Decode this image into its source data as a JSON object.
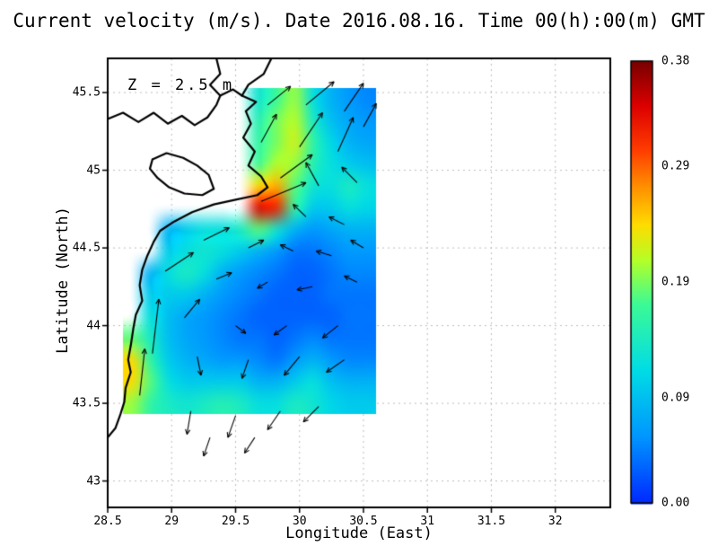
{
  "chart_data": {
    "type": "heatmap",
    "title": "Current velocity (m/s). Date 2016.08.16. Time 00(h):00(m) GMT",
    "annotation": "Z = 2.5 m",
    "xlabel": "Longitude (East)",
    "ylabel": "Latitude (North)",
    "units": "m/s",
    "xlim": [
      28.5,
      32.43
    ],
    "ylim": [
      42.83,
      45.72
    ],
    "xticks": [
      28.5,
      29,
      29.5,
      30,
      30.5,
      31,
      31.5,
      32
    ],
    "xtick_labels": [
      "28.5",
      "29",
      "29.5",
      "30",
      "30.5",
      "31",
      "31.5",
      "32"
    ],
    "yticks": [
      43,
      43.5,
      44,
      44.5,
      45,
      45.5
    ],
    "ytick_labels": [
      "43",
      "43.5",
      "44",
      "44.5",
      "45",
      "45.5"
    ],
    "grid": "dotted",
    "colorbar": {
      "min": 0,
      "max": 0.38,
      "tick_labels": [
        "0.38",
        "0.29",
        "0.19",
        "0.09",
        "0.00"
      ],
      "tick_values": [
        0.38,
        0.29,
        0.19,
        0.09,
        0.0
      ],
      "stops": [
        [
          0.0,
          "#0028ff"
        ],
        [
          0.15,
          "#0096ff"
        ],
        [
          0.3,
          "#00dce6"
        ],
        [
          0.45,
          "#3cfa96"
        ],
        [
          0.55,
          "#b4ff28"
        ],
        [
          0.63,
          "#ffdc00"
        ],
        [
          0.72,
          "#ff8c00"
        ],
        [
          0.8,
          "#ff3c00"
        ],
        [
          0.9,
          "#dc0000"
        ],
        [
          1.0,
          "#780000"
        ]
      ]
    },
    "field": {
      "lon_min": 28.62,
      "lon_max": 30.6,
      "lat_min": 43.43,
      "lat_max": 45.53,
      "values": [
        [
          null,
          null,
          null,
          null,
          null,
          null,
          null,
          0.13,
          0.17,
          0.2,
          0.12,
          0.08,
          0.06,
          0.05
        ],
        [
          null,
          null,
          null,
          null,
          null,
          null,
          null,
          0.15,
          0.19,
          0.21,
          0.14,
          0.09,
          0.07,
          0.06
        ],
        [
          null,
          null,
          null,
          null,
          null,
          null,
          null,
          0.16,
          0.19,
          0.22,
          0.16,
          0.11,
          0.08,
          0.07
        ],
        [
          null,
          null,
          null,
          null,
          null,
          null,
          null,
          0.17,
          0.21,
          0.2,
          0.15,
          0.12,
          0.1,
          0.09
        ],
        [
          null,
          null,
          null,
          null,
          null,
          null,
          null,
          0.24,
          0.26,
          0.18,
          0.13,
          0.12,
          0.14,
          0.12
        ],
        [
          null,
          null,
          null,
          null,
          null,
          null,
          null,
          0.34,
          0.32,
          0.16,
          0.1,
          0.1,
          0.12,
          0.11
        ],
        [
          null,
          null,
          0.08,
          0.1,
          0.12,
          0.12,
          0.14,
          0.18,
          0.13,
          0.08,
          0.06,
          0.07,
          0.08,
          0.08
        ],
        [
          null,
          null,
          0.1,
          0.12,
          0.13,
          0.12,
          0.1,
          0.08,
          0.06,
          0.04,
          0.04,
          0.05,
          0.06,
          0.06
        ],
        [
          null,
          0.08,
          0.12,
          0.14,
          0.12,
          0.08,
          0.06,
          0.05,
          0.04,
          0.03,
          0.03,
          0.04,
          0.05,
          0.05
        ],
        [
          null,
          0.1,
          0.1,
          0.1,
          0.08,
          0.06,
          0.05,
          0.04,
          0.03,
          0.03,
          0.03,
          0.04,
          0.04,
          0.04
        ],
        [
          null,
          0.12,
          0.09,
          0.07,
          0.06,
          0.05,
          0.04,
          0.03,
          0.03,
          0.03,
          0.03,
          0.03,
          0.04,
          0.04
        ],
        [
          0.18,
          0.14,
          0.09,
          0.07,
          0.06,
          0.05,
          0.04,
          0.04,
          0.03,
          0.04,
          0.05,
          0.04,
          0.04,
          0.04
        ],
        [
          0.24,
          0.16,
          0.1,
          0.08,
          0.07,
          0.06,
          0.06,
          0.05,
          0.04,
          0.06,
          0.08,
          0.06,
          0.05,
          0.05
        ],
        [
          0.24,
          0.18,
          0.12,
          0.1,
          0.1,
          0.1,
          0.1,
          0.08,
          0.08,
          0.1,
          0.12,
          0.09,
          0.08,
          0.08
        ],
        [
          0.2,
          0.16,
          0.14,
          0.13,
          0.14,
          0.15,
          0.14,
          0.12,
          0.12,
          0.14,
          0.13,
          0.11,
          0.1,
          0.1
        ]
      ]
    },
    "coastline": [
      [
        [
          29.78,
          45.72
        ],
        [
          29.72,
          45.62
        ],
        [
          29.6,
          45.55
        ],
        [
          29.55,
          45.48
        ],
        [
          29.66,
          45.44
        ],
        [
          29.58,
          45.38
        ],
        [
          29.62,
          45.3
        ],
        [
          29.56,
          45.21
        ],
        [
          29.65,
          45.12
        ],
        [
          29.6,
          45.03
        ],
        [
          29.7,
          44.96
        ],
        [
          29.75,
          44.89
        ],
        [
          29.67,
          44.84
        ],
        [
          29.5,
          44.81
        ],
        [
          29.33,
          44.78
        ],
        [
          29.16,
          44.73
        ],
        [
          29.02,
          44.67
        ],
        [
          28.91,
          44.61
        ],
        [
          28.86,
          44.54
        ],
        [
          28.81,
          44.45
        ],
        [
          28.77,
          44.36
        ],
        [
          28.75,
          44.26
        ],
        [
          28.77,
          44.16
        ],
        [
          28.72,
          44.07
        ],
        [
          28.7,
          43.98
        ],
        [
          28.68,
          43.87
        ],
        [
          28.66,
          43.78
        ],
        [
          28.68,
          43.7
        ],
        [
          28.64,
          43.6
        ],
        [
          28.63,
          43.51
        ],
        [
          28.6,
          43.43
        ],
        [
          28.56,
          43.34
        ],
        [
          28.5,
          43.28
        ]
      ],
      [
        [
          29.35,
          45.72
        ],
        [
          29.38,
          45.62
        ],
        [
          29.3,
          45.55
        ],
        [
          29.38,
          45.48
        ],
        [
          29.48,
          45.52
        ],
        [
          29.55,
          45.48
        ]
      ],
      [
        [
          28.5,
          45.33
        ],
        [
          28.62,
          45.37
        ],
        [
          28.74,
          45.31
        ],
        [
          28.86,
          45.37
        ],
        [
          28.97,
          45.3
        ],
        [
          29.08,
          45.35
        ],
        [
          29.18,
          45.29
        ],
        [
          29.28,
          45.34
        ],
        [
          29.35,
          45.42
        ],
        [
          29.38,
          45.48
        ]
      ],
      [
        [
          28.85,
          45.07
        ],
        [
          28.96,
          45.11
        ],
        [
          29.09,
          45.08
        ],
        [
          29.2,
          45.03
        ],
        [
          29.29,
          44.97
        ],
        [
          29.33,
          44.88
        ],
        [
          29.24,
          44.84
        ],
        [
          29.1,
          44.85
        ],
        [
          28.98,
          44.89
        ],
        [
          28.89,
          44.95
        ],
        [
          28.83,
          45.01
        ],
        [
          28.85,
          45.07
        ]
      ]
    ],
    "vectors": [
      [
        29.75,
        45.42,
        0.18,
        0.12
      ],
      [
        30.05,
        45.42,
        0.22,
        0.15
      ],
      [
        30.35,
        45.38,
        0.15,
        0.18
      ],
      [
        29.7,
        45.18,
        0.12,
        0.18
      ],
      [
        30.0,
        45.15,
        0.18,
        0.22
      ],
      [
        30.3,
        45.12,
        0.12,
        0.22
      ],
      [
        30.5,
        45.28,
        0.1,
        0.15
      ],
      [
        29.85,
        44.95,
        0.25,
        0.15
      ],
      [
        30.15,
        44.9,
        -0.1,
        0.15
      ],
      [
        30.45,
        44.92,
        -0.12,
        0.1
      ],
      [
        29.7,
        44.8,
        0.35,
        0.12
      ],
      [
        30.05,
        44.7,
        -0.1,
        0.08
      ],
      [
        30.35,
        44.65,
        -0.12,
        0.05
      ],
      [
        29.25,
        44.55,
        0.2,
        0.08
      ],
      [
        29.6,
        44.5,
        0.12,
        0.05
      ],
      [
        29.95,
        44.48,
        -0.1,
        0.04
      ],
      [
        30.25,
        44.45,
        -0.12,
        0.03
      ],
      [
        30.5,
        44.5,
        -0.1,
        0.05
      ],
      [
        28.95,
        44.35,
        0.22,
        0.12
      ],
      [
        29.35,
        44.3,
        0.12,
        0.04
      ],
      [
        29.75,
        44.28,
        -0.08,
        -0.04
      ],
      [
        30.1,
        44.25,
        -0.12,
        -0.02
      ],
      [
        30.45,
        44.28,
        -0.1,
        0.04
      ],
      [
        29.1,
        44.05,
        0.12,
        0.12
      ],
      [
        29.5,
        44.0,
        0.08,
        -0.05
      ],
      [
        29.9,
        44.0,
        -0.1,
        -0.06
      ],
      [
        30.3,
        44.0,
        -0.12,
        -0.08
      ],
      [
        28.85,
        43.82,
        0.05,
        0.35
      ],
      [
        29.2,
        43.8,
        0.03,
        -0.12
      ],
      [
        29.6,
        43.78,
        -0.05,
        -0.12
      ],
      [
        30.0,
        43.8,
        -0.12,
        -0.12
      ],
      [
        30.35,
        43.78,
        -0.14,
        -0.08
      ],
      [
        28.75,
        43.55,
        0.04,
        0.3
      ],
      [
        29.15,
        43.45,
        -0.03,
        -0.15
      ],
      [
        29.5,
        43.42,
        -0.06,
        -0.14
      ],
      [
        29.85,
        43.45,
        -0.1,
        -0.12
      ],
      [
        30.15,
        43.48,
        -0.12,
        -0.1
      ],
      [
        29.3,
        43.28,
        -0.05,
        -0.12
      ],
      [
        29.65,
        43.28,
        -0.08,
        -0.1
      ]
    ]
  }
}
